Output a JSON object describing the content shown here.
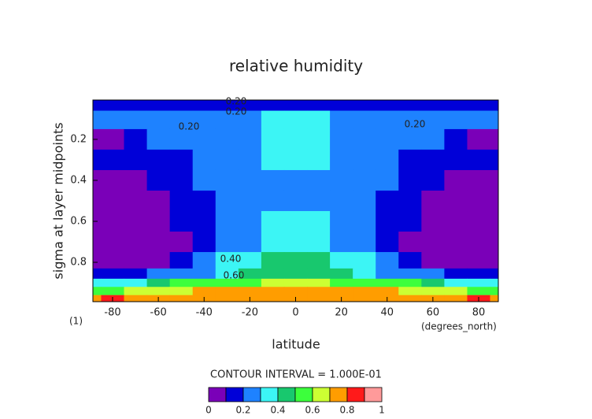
{
  "chart_data": {
    "type": "contour",
    "title": "relative humidity",
    "x_label": "latitude",
    "y_label": "sigma at layer midpoints",
    "x_units": "(degrees_north)",
    "y_units": "(1)",
    "xlim": [
      -88.6,
      88.6
    ],
    "xticks": [
      -80,
      -60,
      -40,
      -20,
      0,
      20,
      40,
      60,
      80
    ],
    "ylim": [
      0.008,
      0.992
    ],
    "y_inverted": true,
    "yticks": [
      0.2,
      0.4,
      0.6,
      0.8
    ],
    "x": [
      -90,
      -80,
      -70,
      -60,
      -50,
      -40,
      -30,
      -20,
      -10,
      0,
      10,
      20,
      30,
      40,
      50,
      60,
      70,
      80,
      90
    ],
    "y": [
      0.02,
      0.1,
      0.2,
      0.3,
      0.4,
      0.5,
      0.6,
      0.7,
      0.8,
      0.86,
      0.9,
      0.94,
      0.98
    ],
    "z": [
      [
        0.15,
        0.15,
        0.15,
        0.15,
        0.15,
        0.15,
        0.15,
        0.15,
        0.15,
        0.15,
        0.15,
        0.15,
        0.15,
        0.15,
        0.15,
        0.15,
        0.15,
        0.15,
        0.15
      ],
      [
        0.25,
        0.25,
        0.25,
        0.25,
        0.25,
        0.25,
        0.25,
        0.25,
        0.32,
        0.32,
        0.32,
        0.25,
        0.25,
        0.25,
        0.25,
        0.25,
        0.25,
        0.25,
        0.25
      ],
      [
        0.05,
        0.05,
        0.15,
        0.25,
        0.25,
        0.28,
        0.28,
        0.28,
        0.35,
        0.35,
        0.35,
        0.28,
        0.28,
        0.28,
        0.25,
        0.25,
        0.15,
        0.05,
        0.05
      ],
      [
        0.15,
        0.15,
        0.15,
        0.15,
        0.18,
        0.25,
        0.28,
        0.28,
        0.32,
        0.32,
        0.32,
        0.28,
        0.28,
        0.25,
        0.18,
        0.15,
        0.15,
        0.15,
        0.15
      ],
      [
        0.05,
        0.05,
        0.05,
        0.15,
        0.18,
        0.25,
        0.25,
        0.25,
        0.27,
        0.27,
        0.27,
        0.25,
        0.25,
        0.25,
        0.18,
        0.15,
        0.05,
        0.05,
        0.05
      ],
      [
        0.05,
        0.05,
        0.05,
        0.05,
        0.15,
        0.18,
        0.25,
        0.26,
        0.28,
        0.28,
        0.28,
        0.26,
        0.25,
        0.18,
        0.15,
        0.05,
        0.05,
        0.05,
        0.05
      ],
      [
        0.05,
        0.05,
        0.05,
        0.05,
        0.15,
        0.18,
        0.25,
        0.27,
        0.33,
        0.33,
        0.33,
        0.27,
        0.25,
        0.18,
        0.15,
        0.05,
        0.05,
        0.05,
        0.05
      ],
      [
        0.05,
        0.05,
        0.05,
        0.05,
        0.08,
        0.15,
        0.22,
        0.28,
        0.35,
        0.35,
        0.35,
        0.28,
        0.22,
        0.15,
        0.08,
        0.05,
        0.05,
        0.05,
        0.05
      ],
      [
        0.08,
        0.08,
        0.08,
        0.08,
        0.15,
        0.22,
        0.3,
        0.38,
        0.42,
        0.42,
        0.42,
        0.38,
        0.3,
        0.22,
        0.15,
        0.08,
        0.08,
        0.08,
        0.08
      ],
      [
        0.18,
        0.18,
        0.18,
        0.25,
        0.25,
        0.25,
        0.35,
        0.48,
        0.48,
        0.48,
        0.48,
        0.48,
        0.35,
        0.25,
        0.25,
        0.25,
        0.18,
        0.18,
        0.18
      ],
      [
        0.35,
        0.35,
        0.35,
        0.45,
        0.5,
        0.58,
        0.58,
        0.58,
        0.62,
        0.62,
        0.62,
        0.58,
        0.58,
        0.58,
        0.5,
        0.45,
        0.35,
        0.35,
        0.35
      ],
      [
        0.55,
        0.55,
        0.65,
        0.65,
        0.65,
        0.72,
        0.72,
        0.72,
        0.72,
        0.72,
        0.72,
        0.72,
        0.72,
        0.72,
        0.65,
        0.65,
        0.65,
        0.55,
        0.55
      ],
      [
        0.75,
        0.85,
        0.75,
        0.75,
        0.75,
        0.75,
        0.75,
        0.75,
        0.75,
        0.75,
        0.75,
        0.75,
        0.75,
        0.75,
        0.75,
        0.75,
        0.75,
        0.85,
        0.75
      ]
    ],
    "contour_labels": [
      "0.20",
      "0.20",
      "0.20",
      "0.20",
      "0.40",
      "0.60"
    ],
    "contour_interval_text": "CONTOUR INTERVAL = 1.000E-01",
    "levels": [
      0,
      0.1,
      0.2,
      0.3,
      0.4,
      0.5,
      0.6,
      0.7,
      0.8,
      0.9,
      1
    ],
    "colors": [
      "#7a00b8",
      "#0000d8",
      "#1e82ff",
      "#3cf5f5",
      "#18c86e",
      "#3cff3c",
      "#ccff33",
      "#ff9d00",
      "#ff1a1a",
      "#ff9a9a"
    ],
    "colorbar_ticks": [
      0,
      0.2,
      0.4,
      0.6,
      0.8,
      1
    ]
  }
}
